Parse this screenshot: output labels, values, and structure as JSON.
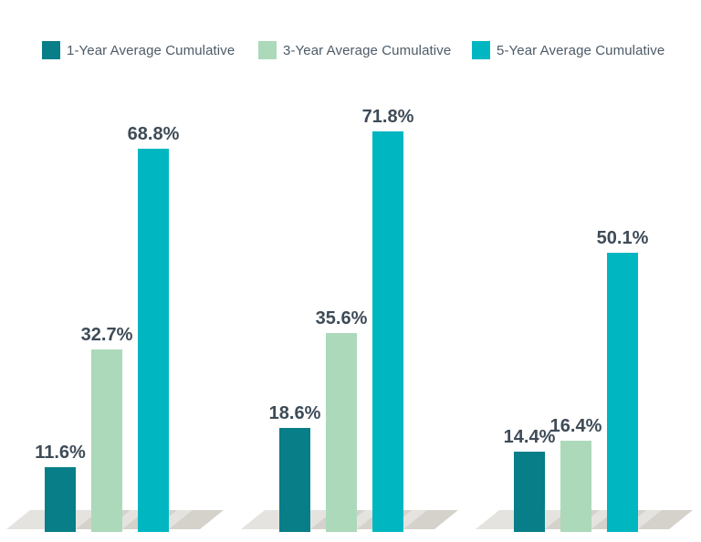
{
  "page": {
    "background": "#ffffff"
  },
  "legend": {
    "position": "top",
    "items": [
      {
        "label": "1-Year Average Cumulative",
        "color": "#077e88"
      },
      {
        "label": "3-Year Average Cumulative",
        "color": "#acd9ba"
      },
      {
        "label": "5-Year Average Cumulative",
        "color": "#00b6c1"
      }
    ]
  },
  "chart_data": {
    "type": "bar",
    "title": "",
    "xlabel": "",
    "ylabel": "",
    "unit": "%",
    "categories": [
      "",
      "",
      ""
    ],
    "series": [
      {
        "name": "1-Year Average Cumulative",
        "color": "#077e88",
        "values": [
          11.6,
          18.6,
          14.4
        ],
        "labels": [
          "11.6%",
          "18.6%",
          "14.4%"
        ]
      },
      {
        "name": "3-Year Average Cumulative",
        "color": "#acd9ba",
        "values": [
          32.7,
          35.6,
          16.4
        ],
        "labels": [
          "32.7%",
          "35.6%",
          "16.4%"
        ]
      },
      {
        "name": "5-Year Average Cumulative",
        "color": "#00b6c1",
        "values": [
          68.8,
          71.8,
          50.1
        ],
        "labels": [
          "68.8%",
          "71.8%",
          "50.1%"
        ]
      }
    ],
    "ylim": [
      0,
      80
    ],
    "grid": false,
    "axes_visible": false,
    "legend_position": "top",
    "value_labels_shown": true,
    "value_label_color": "#3e4b57",
    "floor_color": "#e5e3df",
    "floor_shadow_color": "#d5d2cc"
  }
}
